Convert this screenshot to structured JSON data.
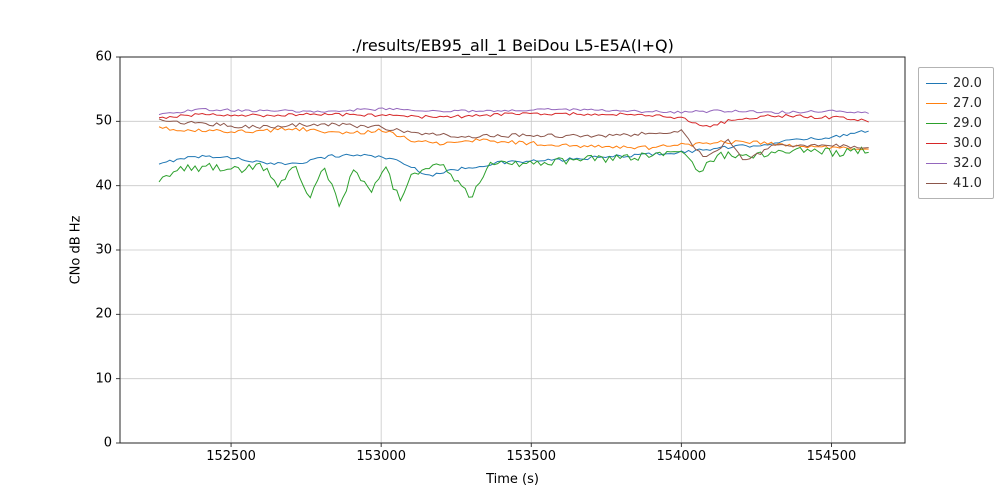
{
  "figure": {
    "background": "#ffffff"
  },
  "chart_data": {
    "type": "line",
    "title": "./results/EB95_all_1 BeiDou L5-E5A(I+Q)",
    "xlabel": "Time (s)",
    "ylabel": "CNo dB Hz",
    "xlim": [
      152130,
      154745
    ],
    "ylim": [
      0,
      60
    ],
    "xticks": [
      152500,
      153000,
      153500,
      154000,
      154500
    ],
    "yticks": [
      0,
      10,
      20,
      30,
      40,
      50,
      60
    ],
    "grid": true,
    "grid_color": "#c8c8c8",
    "spine_color": "#262626",
    "legend_position": "outside-right",
    "series": [
      {
        "name": "20.0",
        "color": "#1f77b4",
        "noise": 0.25,
        "anchors": [
          [
            152260,
            43.2
          ],
          [
            152330,
            44.3
          ],
          [
            152430,
            44.6
          ],
          [
            152530,
            44.2
          ],
          [
            152630,
            43.3
          ],
          [
            152730,
            43.6
          ],
          [
            152830,
            44.6
          ],
          [
            152930,
            44.8
          ],
          [
            153030,
            44.3
          ],
          [
            153100,
            42.9
          ],
          [
            153160,
            41.6
          ],
          [
            153260,
            42.6
          ],
          [
            153400,
            43.6
          ],
          [
            153600,
            44.0
          ],
          [
            153800,
            44.6
          ],
          [
            154000,
            45.2
          ],
          [
            154120,
            45.8
          ],
          [
            154250,
            46.3
          ],
          [
            154400,
            47.2
          ],
          [
            154520,
            47.6
          ],
          [
            154600,
            48.6
          ],
          [
            154630,
            48.3
          ]
        ]
      },
      {
        "name": "27.0",
        "color": "#ff7f0e",
        "noise": 0.3,
        "anchors": [
          [
            152260,
            48.9
          ],
          [
            152400,
            48.5
          ],
          [
            152600,
            48.4
          ],
          [
            152700,
            48.9
          ],
          [
            152800,
            48.5
          ],
          [
            152900,
            48.1
          ],
          [
            153000,
            48.6
          ],
          [
            153100,
            47.1
          ],
          [
            153200,
            46.6
          ],
          [
            153300,
            47.1
          ],
          [
            153500,
            46.6
          ],
          [
            153700,
            46.1
          ],
          [
            153900,
            45.9
          ],
          [
            154080,
            46.6
          ],
          [
            154200,
            46.9
          ],
          [
            154400,
            46.1
          ],
          [
            154550,
            45.9
          ],
          [
            154630,
            45.8
          ]
        ]
      },
      {
        "name": "29.0",
        "color": "#2ca02c",
        "noise": 0.6,
        "anchors": [
          [
            152260,
            40.9
          ],
          [
            152320,
            42.6
          ],
          [
            152430,
            42.9
          ],
          [
            152530,
            42.6
          ],
          [
            152600,
            43.1
          ],
          [
            152660,
            40.1
          ],
          [
            152710,
            43.6
          ],
          [
            152760,
            38.3
          ],
          [
            152810,
            43.1
          ],
          [
            152860,
            36.8
          ],
          [
            152910,
            42.6
          ],
          [
            152960,
            38.9
          ],
          [
            153010,
            43.1
          ],
          [
            153060,
            37.9
          ],
          [
            153110,
            42.1
          ],
          [
            153200,
            43.1
          ],
          [
            153300,
            38.4
          ],
          [
            153360,
            43.1
          ],
          [
            153500,
            43.6
          ],
          [
            153700,
            44.1
          ],
          [
            153900,
            44.6
          ],
          [
            154000,
            45.1
          ],
          [
            154060,
            42.1
          ],
          [
            154120,
            44.6
          ],
          [
            154250,
            44.9
          ],
          [
            154400,
            45.6
          ],
          [
            154520,
            45.1
          ],
          [
            154630,
            45.6
          ]
        ]
      },
      {
        "name": "30.0",
        "color": "#d62728",
        "noise": 0.25,
        "anchors": [
          [
            152260,
            50.6
          ],
          [
            152400,
            51.1
          ],
          [
            152600,
            50.9
          ],
          [
            152800,
            51.1
          ],
          [
            153000,
            50.9
          ],
          [
            153200,
            50.6
          ],
          [
            153400,
            51.1
          ],
          [
            153600,
            51.2
          ],
          [
            153800,
            51.1
          ],
          [
            154000,
            50.6
          ],
          [
            154080,
            49.1
          ],
          [
            154160,
            50.1
          ],
          [
            154300,
            50.9
          ],
          [
            154500,
            50.6
          ],
          [
            154630,
            50.1
          ]
        ]
      },
      {
        "name": "32.0",
        "color": "#9467bd",
        "noise": 0.2,
        "anchors": [
          [
            152260,
            51.1
          ],
          [
            152400,
            51.9
          ],
          [
            152600,
            51.6
          ],
          [
            152800,
            51.6
          ],
          [
            153000,
            51.9
          ],
          [
            153200,
            51.6
          ],
          [
            153400,
            51.6
          ],
          [
            153600,
            51.9
          ],
          [
            153800,
            51.6
          ],
          [
            154000,
            51.4
          ],
          [
            154120,
            51.6
          ],
          [
            154300,
            51.4
          ],
          [
            154500,
            51.6
          ],
          [
            154630,
            51.3
          ]
        ]
      },
      {
        "name": "41.0",
        "color": "#8c564b",
        "noise": 0.3,
        "anchors": [
          [
            152260,
            50.1
          ],
          [
            152400,
            49.6
          ],
          [
            152600,
            49.1
          ],
          [
            152800,
            49.6
          ],
          [
            153000,
            49.1
          ],
          [
            153100,
            48.1
          ],
          [
            153300,
            47.6
          ],
          [
            153500,
            47.9
          ],
          [
            153700,
            47.6
          ],
          [
            153900,
            48.1
          ],
          [
            154000,
            48.6
          ],
          [
            154080,
            44.1
          ],
          [
            154160,
            47.1
          ],
          [
            154210,
            43.6
          ],
          [
            154300,
            46.1
          ],
          [
            154500,
            46.3
          ],
          [
            154600,
            45.9
          ],
          [
            154630,
            45.6
          ]
        ]
      }
    ]
  }
}
